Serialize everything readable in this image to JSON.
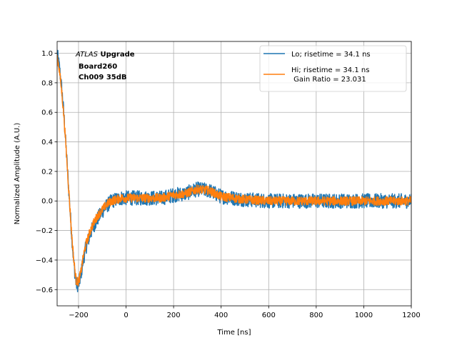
{
  "chart_data": {
    "type": "line",
    "title": "",
    "xlabel": "Time [ns]",
    "ylabel": "Normalized Amplitude (A.U.)",
    "xlim": [
      -290,
      1200
    ],
    "ylim": [
      -0.71,
      1.08
    ],
    "xticks": [
      -200,
      0,
      200,
      400,
      600,
      800,
      1000,
      1200
    ],
    "yticks": [
      -0.6,
      -0.4,
      -0.2,
      0.0,
      0.2,
      0.4,
      0.6,
      0.8,
      1.0
    ],
    "xtick_labels": [
      "−200",
      "0",
      "200",
      "400",
      "600",
      "800",
      "1000",
      "1200"
    ],
    "ytick_labels": [
      "−0.6",
      "−0.4",
      "−0.2",
      "0.0",
      "0.2",
      "0.4",
      "0.6",
      "0.8",
      "1.0"
    ],
    "grid": true,
    "legend_position": "top-right",
    "annotation": {
      "line1_italic": "ATLAS",
      "line1_bold": " Upgrade",
      "line2": "Board260",
      "line3": "Ch009 35dB"
    },
    "series": [
      {
        "name": "Lo; risetime = 34.1 ns",
        "color": "#1f77b4",
        "envelope_x": [
          -290,
          -280,
          -270,
          -260,
          -250,
          -240,
          -230,
          -220,
          -210,
          -200,
          -190,
          -180,
          -170,
          -160,
          -150,
          -140,
          -120,
          -100,
          -80,
          -60,
          -40,
          -20,
          0,
          50,
          100,
          150,
          200,
          250,
          300,
          350,
          400,
          450,
          500,
          600,
          700,
          800,
          900,
          1000,
          1100,
          1200
        ],
        "envelope_y": [
          1.0,
          0.9,
          0.75,
          0.55,
          0.3,
          0.05,
          -0.2,
          -0.42,
          -0.56,
          -0.57,
          -0.5,
          -0.4,
          -0.32,
          -0.27,
          -0.22,
          -0.18,
          -0.12,
          -0.07,
          -0.03,
          0.0,
          0.01,
          0.02,
          0.02,
          0.02,
          0.02,
          0.02,
          0.04,
          0.05,
          0.08,
          0.07,
          0.03,
          0.02,
          0.01,
          0.0,
          0.0,
          0.0,
          0.0,
          0.0,
          0.0,
          0.0
        ],
        "noise_amplitude": 0.05
      },
      {
        "name": "Hi; risetime = 34.1 ns\n Gain Ratio = 23.031",
        "color": "#ff7f0e",
        "envelope_x": [
          -290,
          -280,
          -270,
          -260,
          -250,
          -240,
          -230,
          -220,
          -210,
          -200,
          -190,
          -180,
          -170,
          -160,
          -150,
          -140,
          -120,
          -100,
          -80,
          -60,
          -40,
          -20,
          0,
          50,
          100,
          150,
          200,
          250,
          300,
          350,
          400,
          450,
          500,
          600,
          700,
          800,
          900,
          1000,
          1100,
          1200
        ],
        "envelope_y": [
          0.98,
          0.88,
          0.73,
          0.54,
          0.3,
          0.05,
          -0.2,
          -0.4,
          -0.54,
          -0.55,
          -0.48,
          -0.38,
          -0.3,
          -0.25,
          -0.2,
          -0.16,
          -0.1,
          -0.06,
          -0.02,
          0.0,
          0.01,
          0.02,
          0.02,
          0.02,
          0.02,
          0.02,
          0.04,
          0.05,
          0.08,
          0.07,
          0.03,
          0.02,
          0.01,
          0.0,
          0.0,
          0.0,
          0.0,
          0.0,
          0.0,
          0.0
        ],
        "noise_amplitude": 0.03
      }
    ]
  }
}
